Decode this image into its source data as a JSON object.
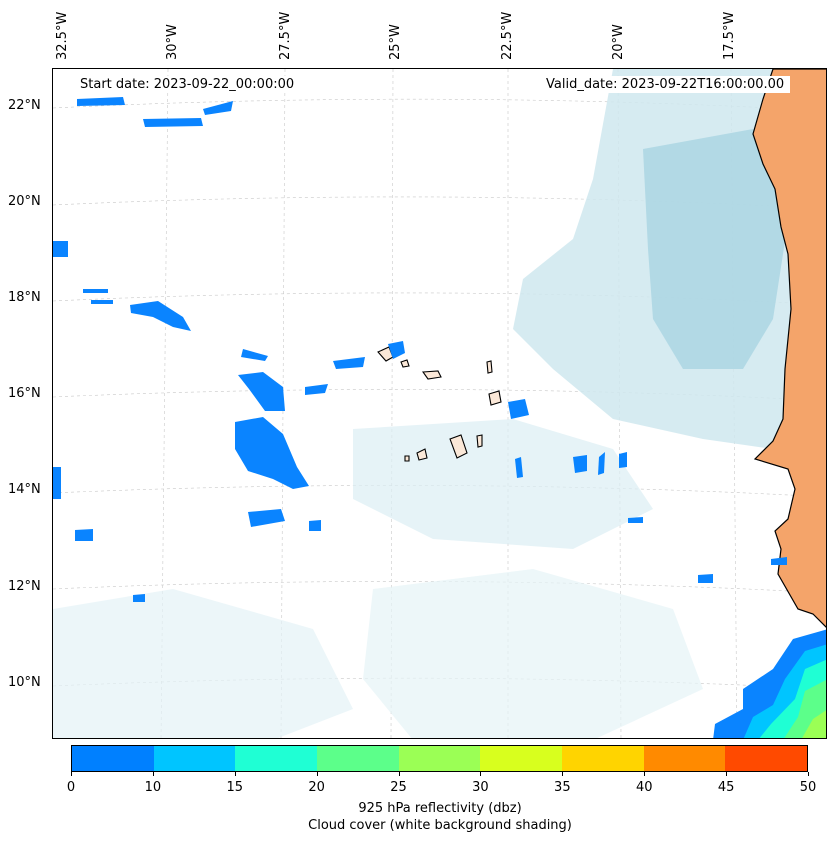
{
  "map": {
    "lon_labels": [
      "32.5°W",
      "30°W",
      "27.5°W",
      "25°W",
      "22.5°W",
      "20°W",
      "17.5°W"
    ],
    "lat_labels": [
      "22°N",
      "20°N",
      "18°N",
      "16°N",
      "14°N",
      "12°N",
      "10°N"
    ],
    "start_date": "Start date: 2023-09-22_00:00:00",
    "valid_date": "Valid_date: 2023-09-22T16:00:00.00"
  },
  "colorbar": {
    "ticks": [
      "0",
      "10",
      "15",
      "20",
      "25",
      "30",
      "35",
      "40",
      "45",
      "50"
    ],
    "colors": [
      "#0080ff",
      "#00c5ff",
      "#1fffd4",
      "#5cff8a",
      "#9bff55",
      "#d8ff1e",
      "#ffd400",
      "#ff8a00",
      "#ff4a00"
    ],
    "label_line1": "925 hPa reflectivity (dbz)",
    "label_line2": "Cloud cover (white background shading)"
  },
  "colors": {
    "reflectivity_low": "#0a84ff",
    "cloud_shading": "#b9dde8",
    "land": "#f4a46a",
    "coastline": "#000000",
    "gridline": "#c8c8c8"
  }
}
